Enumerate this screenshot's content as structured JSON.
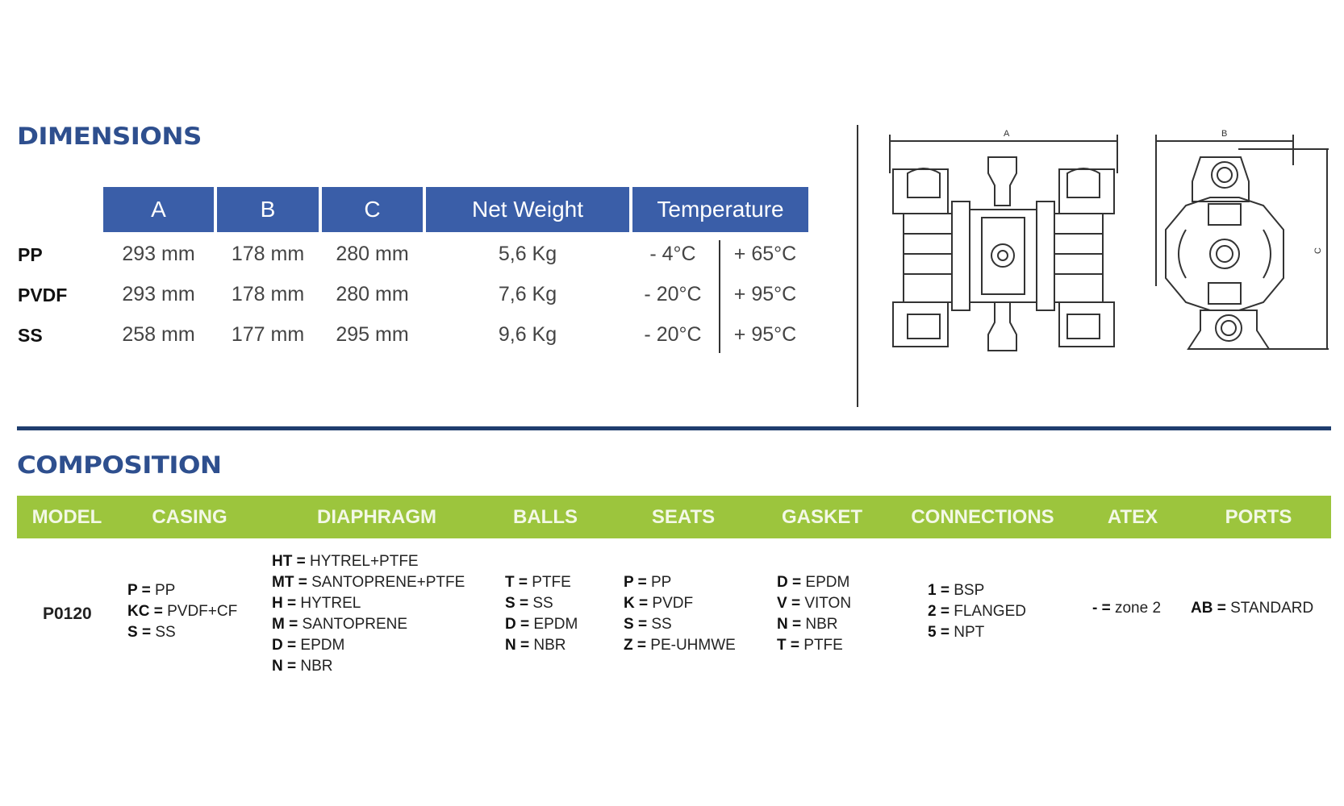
{
  "dimensions": {
    "title": "DIMENSIONS",
    "headers": [
      "A",
      "B",
      "C",
      "Net Weight",
      "Temperature"
    ],
    "rows": [
      {
        "label": "PP",
        "a": "293 mm",
        "b": "178 mm",
        "c": "280 mm",
        "weight": "5,6 Kg",
        "temp_min": "- 4°C",
        "temp_max": "+ 65°C"
      },
      {
        "label": "PVDF",
        "a": "293 mm",
        "b": "178 mm",
        "c": "280 mm",
        "weight": "7,6 Kg",
        "temp_min": "- 20°C",
        "temp_max": "+ 95°C"
      },
      {
        "label": "SS",
        "a": "258 mm",
        "b": "177 mm",
        "c": "295 mm",
        "weight": "9,6 Kg",
        "temp_min": "- 20°C",
        "temp_max": "+ 95°C"
      }
    ],
    "header_color": "#3a5ea8"
  },
  "drawing": {
    "label_a": "A",
    "label_b": "B",
    "label_c": "C"
  },
  "composition": {
    "title": "COMPOSITION",
    "bar_color": "#9cc53d",
    "headers": [
      "MODEL",
      "CASING",
      "DIAPHRAGM",
      "BALLS",
      "SEATS",
      "GASKET",
      "CONNECTIONS",
      "ATEX",
      "PORTS"
    ],
    "model": "P0120",
    "casing": [
      {
        "k": "P",
        "v": "PP"
      },
      {
        "k": "KC",
        "v": "PVDF+CF"
      },
      {
        "k": "S",
        "v": "SS"
      }
    ],
    "diaphragm": [
      {
        "k": "HT",
        "v": "HYTREL+PTFE"
      },
      {
        "k": "MT",
        "v": "SANTOPRENE+PTFE"
      },
      {
        "k": "H",
        "v": "HYTREL"
      },
      {
        "k": "M",
        "v": "SANTOPRENE"
      },
      {
        "k": "D",
        "v": "EPDM"
      },
      {
        "k": "N",
        "v": "NBR"
      }
    ],
    "balls": [
      {
        "k": "T",
        "v": "PTFE"
      },
      {
        "k": "S",
        "v": "SS"
      },
      {
        "k": "D",
        "v": "EPDM"
      },
      {
        "k": "N",
        "v": "NBR"
      }
    ],
    "seats": [
      {
        "k": "P",
        "v": "PP"
      },
      {
        "k": "K",
        "v": "PVDF"
      },
      {
        "k": "S",
        "v": "SS"
      },
      {
        "k": "Z",
        "v": "PE-UHMWE"
      }
    ],
    "gasket": [
      {
        "k": "D",
        "v": "EPDM"
      },
      {
        "k": "V",
        "v": "VITON"
      },
      {
        "k": "N",
        "v": "NBR"
      },
      {
        "k": "T",
        "v": "PTFE"
      }
    ],
    "connections": [
      {
        "k": "1",
        "v": "BSP"
      },
      {
        "k": "2",
        "v": "FLANGED"
      },
      {
        "k": "5",
        "v": "NPT"
      }
    ],
    "atex": [
      {
        "k": "-",
        "v": "zone 2"
      }
    ],
    "ports": [
      {
        "k": "AB",
        "v": "STANDARD"
      }
    ]
  }
}
